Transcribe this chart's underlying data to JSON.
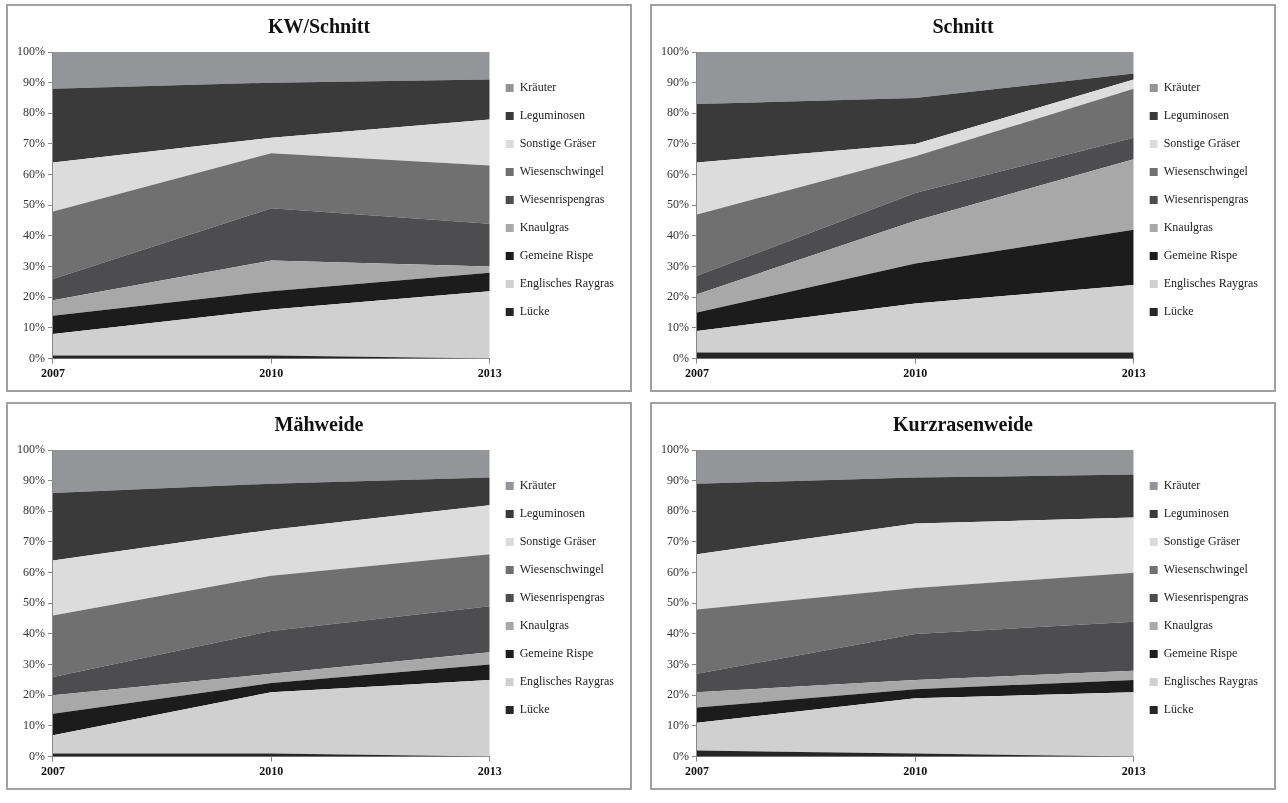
{
  "chart_data": [
    {
      "type": "area",
      "title": "KW/Schnitt",
      "categories": [
        "2007",
        "2010",
        "2013"
      ],
      "stacked": true,
      "legend": "right",
      "ylim": [
        0,
        100
      ],
      "yticks": [
        {
          "value": 0,
          "label": "0%"
        },
        {
          "value": 10,
          "label": "10%"
        },
        {
          "value": 20,
          "label": "20%"
        },
        {
          "value": 30,
          "label": "30%"
        },
        {
          "value": 40,
          "label": "40%"
        },
        {
          "value": 50,
          "label": "50%"
        },
        {
          "value": 60,
          "label": "60%"
        },
        {
          "value": 70,
          "label": "70%"
        },
        {
          "value": 80,
          "label": "80%"
        },
        {
          "value": 90,
          "label": "90%"
        },
        {
          "value": 100,
          "label": "100%"
        }
      ],
      "series": [
        {
          "name": "Lücke",
          "color": "#262626",
          "values": [
            1,
            1,
            0
          ]
        },
        {
          "name": "Englisches Raygras",
          "color": "#d0d0d0",
          "values": [
            7,
            15,
            22
          ]
        },
        {
          "name": "Gemeine Rispe",
          "color": "#1c1c1c",
          "values": [
            6,
            6,
            6
          ]
        },
        {
          "name": "Knaulgras",
          "color": "#a8a8a8",
          "values": [
            5,
            10,
            2
          ]
        },
        {
          "name": "Wiesenrispengras",
          "color": "#4d4d4f",
          "values": [
            7,
            17,
            14
          ]
        },
        {
          "name": "Wiesenschwingel",
          "color": "#707070",
          "values": [
            22,
            18,
            19
          ]
        },
        {
          "name": "Sonstige Gräser",
          "color": "#dcdcdc",
          "values": [
            16,
            5,
            15
          ]
        },
        {
          "name": "Leguminosen",
          "color": "#3a3a3a",
          "values": [
            24,
            18,
            13
          ]
        },
        {
          "name": "Kräuter",
          "color": "#939598",
          "values": [
            12,
            10,
            9
          ]
        }
      ]
    },
    {
      "type": "area",
      "title": "Schnitt",
      "categories": [
        "2007",
        "2010",
        "2013"
      ],
      "stacked": true,
      "legend": "right",
      "ylim": [
        0,
        100
      ],
      "yticks": [
        {
          "value": 0,
          "label": "0%"
        },
        {
          "value": 10,
          "label": "10%"
        },
        {
          "value": 20,
          "label": "20%"
        },
        {
          "value": 30,
          "label": "30%"
        },
        {
          "value": 40,
          "label": "40%"
        },
        {
          "value": 50,
          "label": "50%"
        },
        {
          "value": 60,
          "label": "60%"
        },
        {
          "value": 70,
          "label": "70%"
        },
        {
          "value": 80,
          "label": "80%"
        },
        {
          "value": 90,
          "label": "90%"
        },
        {
          "value": 100,
          "label": "100%"
        }
      ],
      "series": [
        {
          "name": "Lücke",
          "color": "#262626",
          "values": [
            2,
            2,
            2
          ]
        },
        {
          "name": "Englisches Raygras",
          "color": "#d0d0d0",
          "values": [
            7,
            16,
            22
          ]
        },
        {
          "name": "Gemeine Rispe",
          "color": "#1c1c1c",
          "values": [
            6,
            13,
            18
          ]
        },
        {
          "name": "Knaulgras",
          "color": "#a8a8a8",
          "values": [
            6,
            14,
            23
          ]
        },
        {
          "name": "Wiesenrispengras",
          "color": "#4d4d4f",
          "values": [
            6,
            9,
            7
          ]
        },
        {
          "name": "Wiesenschwingel",
          "color": "#707070",
          "values": [
            20,
            12,
            16
          ]
        },
        {
          "name": "Sonstige Gräser",
          "color": "#dcdcdc",
          "values": [
            17,
            4,
            3
          ]
        },
        {
          "name": "Leguminosen",
          "color": "#3a3a3a",
          "values": [
            19,
            15,
            2
          ]
        },
        {
          "name": "Kräuter",
          "color": "#939598",
          "values": [
            17,
            15,
            7
          ]
        }
      ]
    },
    {
      "type": "area",
      "title": "Mähweide",
      "categories": [
        "2007",
        "2010",
        "2013"
      ],
      "stacked": true,
      "legend": "right",
      "ylim": [
        0,
        100
      ],
      "yticks": [
        {
          "value": 0,
          "label": "0%"
        },
        {
          "value": 10,
          "label": "10%"
        },
        {
          "value": 20,
          "label": "20%"
        },
        {
          "value": 30,
          "label": "30%"
        },
        {
          "value": 40,
          "label": "40%"
        },
        {
          "value": 50,
          "label": "50%"
        },
        {
          "value": 60,
          "label": "60%"
        },
        {
          "value": 70,
          "label": "70%"
        },
        {
          "value": 80,
          "label": "80%"
        },
        {
          "value": 90,
          "label": "90%"
        },
        {
          "value": 100,
          "label": "100%"
        }
      ],
      "series": [
        {
          "name": "Lücke",
          "color": "#262626",
          "values": [
            1,
            1,
            0
          ]
        },
        {
          "name": "Englisches Raygras",
          "color": "#d0d0d0",
          "values": [
            6,
            20,
            25
          ]
        },
        {
          "name": "Gemeine Rispe",
          "color": "#1c1c1c",
          "values": [
            7,
            3,
            5
          ]
        },
        {
          "name": "Knaulgras",
          "color": "#a8a8a8",
          "values": [
            6,
            3,
            4
          ]
        },
        {
          "name": "Wiesenrispengras",
          "color": "#4d4d4f",
          "values": [
            6,
            14,
            15
          ]
        },
        {
          "name": "Wiesenschwingel",
          "color": "#707070",
          "values": [
            20,
            18,
            17
          ]
        },
        {
          "name": "Sonstige Gräser",
          "color": "#dcdcdc",
          "values": [
            18,
            15,
            16
          ]
        },
        {
          "name": "Leguminosen",
          "color": "#3a3a3a",
          "values": [
            22,
            15,
            9
          ]
        },
        {
          "name": "Kräuter",
          "color": "#939598",
          "values": [
            14,
            11,
            9
          ]
        }
      ]
    },
    {
      "type": "area",
      "title": "Kurzrasenweide",
      "categories": [
        "2007",
        "2010",
        "2013"
      ],
      "stacked": true,
      "legend": "right",
      "ylim": [
        0,
        100
      ],
      "yticks": [
        {
          "value": 0,
          "label": "0%"
        },
        {
          "value": 10,
          "label": "10%"
        },
        {
          "value": 20,
          "label": "20%"
        },
        {
          "value": 30,
          "label": "30%"
        },
        {
          "value": 40,
          "label": "40%"
        },
        {
          "value": 50,
          "label": "50%"
        },
        {
          "value": 60,
          "label": "60%"
        },
        {
          "value": 70,
          "label": "70%"
        },
        {
          "value": 80,
          "label": "80%"
        },
        {
          "value": 90,
          "label": "90%"
        },
        {
          "value": 100,
          "label": "100%"
        }
      ],
      "series": [
        {
          "name": "Lücke",
          "color": "#262626",
          "values": [
            2,
            1,
            0
          ]
        },
        {
          "name": "Englisches Raygras",
          "color": "#d0d0d0",
          "values": [
            9,
            18,
            21
          ]
        },
        {
          "name": "Gemeine Rispe",
          "color": "#1c1c1c",
          "values": [
            5,
            3,
            4
          ]
        },
        {
          "name": "Knaulgras",
          "color": "#a8a8a8",
          "values": [
            5,
            3,
            3
          ]
        },
        {
          "name": "Wiesenrispengras",
          "color": "#4d4d4f",
          "values": [
            6,
            15,
            16
          ]
        },
        {
          "name": "Wiesenschwingel",
          "color": "#707070",
          "values": [
            21,
            15,
            16
          ]
        },
        {
          "name": "Sonstige Gräser",
          "color": "#dcdcdc",
          "values": [
            18,
            21,
            18
          ]
        },
        {
          "name": "Leguminosen",
          "color": "#3a3a3a",
          "values": [
            23,
            15,
            14
          ]
        },
        {
          "name": "Kräuter",
          "color": "#939598",
          "values": [
            11,
            9,
            8
          ]
        }
      ]
    }
  ]
}
